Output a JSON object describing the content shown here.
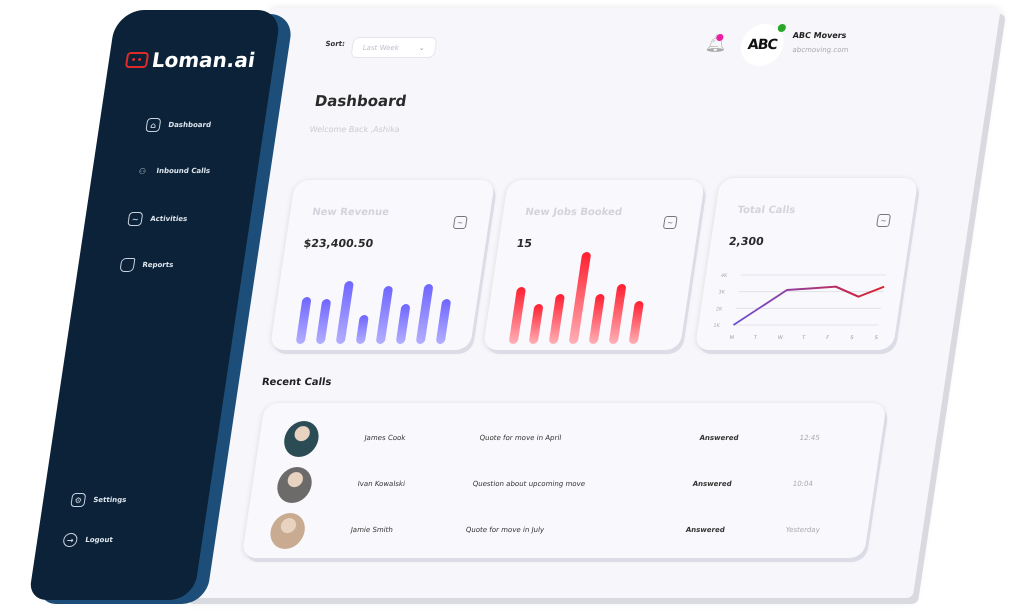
{
  "sidebar": {
    "logo": "Loman.ai",
    "items": [
      {
        "label": "Dashboard",
        "icon": "home-icon"
      },
      {
        "label": "Inbound Calls",
        "icon": "people-icon"
      },
      {
        "label": "Activities",
        "icon": "activity-icon"
      },
      {
        "label": "Reports",
        "icon": "report-icon"
      }
    ],
    "settings": "Settings",
    "logout": "Logout"
  },
  "header": {
    "sort_label": "Sort:",
    "sort_value": "Last Week",
    "company": "ABC Movers",
    "company_logo": "ABC",
    "website": "abcmoving.com"
  },
  "page": {
    "title": "Dashboard",
    "welcome": "Welcome Back ,Ashika"
  },
  "cards": [
    {
      "title": "New Revenue",
      "value": "$23,400.50"
    },
    {
      "title": "New Jobs Booked",
      "value": "15"
    },
    {
      "title": "Total Calls",
      "value": "2,300"
    }
  ],
  "chart_data": [
    {
      "type": "bar",
      "values": [
        47,
        45,
        63,
        29,
        58,
        40,
        60,
        45
      ],
      "color": "#6f66ff"
    },
    {
      "type": "bar",
      "values": [
        57,
        40,
        50,
        92,
        50,
        60,
        43
      ],
      "color": "#ff2a3a"
    },
    {
      "type": "line",
      "categories": [
        "M",
        "T",
        "W",
        "T",
        "F",
        "S",
        "S"
      ],
      "y_ticks": [
        "1K",
        "2K",
        "3K",
        "4K"
      ],
      "values": [
        1000,
        2050,
        3100,
        3200,
        3300,
        2700,
        3300
      ],
      "ylim": [
        1000,
        4000
      ],
      "grid": true,
      "colors": [
        "#6a4fd8",
        "#e01e2a"
      ]
    }
  ],
  "recent": {
    "title": "Recent Calls",
    "rows": [
      {
        "name": "James Cook",
        "subject": "Quote for move in April",
        "status": "Answered",
        "time": "12:45"
      },
      {
        "name": "Ivan Kowalski",
        "subject": "Question about upcoming move",
        "status": "Answered",
        "time": "10:04"
      },
      {
        "name": "Jamie Smith",
        "subject": "Quote for move in July",
        "status": "Answered",
        "time": "Yesterday"
      }
    ]
  }
}
